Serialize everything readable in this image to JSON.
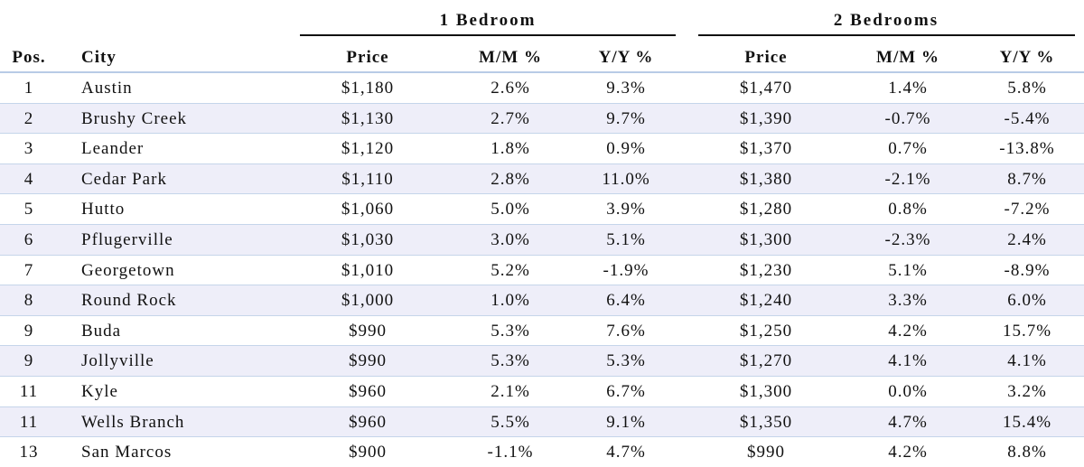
{
  "header": {
    "groups": [
      "1 Bedroom",
      "2 Bedrooms"
    ],
    "columns": [
      "Pos.",
      "City",
      "Price",
      "M/M %",
      "Y/Y %",
      "Price",
      "M/M %",
      "Y/Y %"
    ]
  },
  "table": {
    "rows": [
      [
        "1",
        "Austin",
        "$1,180",
        "2.6%",
        "9.3%",
        "$1,470",
        "1.4%",
        "5.8%"
      ],
      [
        "2",
        "Brushy Creek",
        "$1,130",
        "2.7%",
        "9.7%",
        "$1,390",
        "-0.7%",
        "-5.4%"
      ],
      [
        "3",
        "Leander",
        "$1,120",
        "1.8%",
        "0.9%",
        "$1,370",
        "0.7%",
        "-13.8%"
      ],
      [
        "4",
        "Cedar Park",
        "$1,110",
        "2.8%",
        "11.0%",
        "$1,380",
        "-2.1%",
        "8.7%"
      ],
      [
        "5",
        "Hutto",
        "$1,060",
        "5.0%",
        "3.9%",
        "$1,280",
        "0.8%",
        "-7.2%"
      ],
      [
        "6",
        "Pflugerville",
        "$1,030",
        "3.0%",
        "5.1%",
        "$1,300",
        "-2.3%",
        "2.4%"
      ],
      [
        "7",
        "Georgetown",
        "$1,010",
        "5.2%",
        "-1.9%",
        "$1,230",
        "5.1%",
        "-8.9%"
      ],
      [
        "8",
        "Round Rock",
        "$1,000",
        "1.0%",
        "6.4%",
        "$1,240",
        "3.3%",
        "6.0%"
      ],
      [
        "9",
        "Buda",
        "$990",
        "5.3%",
        "7.6%",
        "$1,250",
        "4.2%",
        "15.7%"
      ],
      [
        "9",
        "Jollyville",
        "$990",
        "5.3%",
        "5.3%",
        "$1,270",
        "4.1%",
        "4.1%"
      ],
      [
        "11",
        "Kyle",
        "$960",
        "2.1%",
        "6.7%",
        "$1,300",
        "0.0%",
        "3.2%"
      ],
      [
        "11",
        "Wells Branch",
        "$960",
        "5.5%",
        "9.1%",
        "$1,350",
        "4.7%",
        "15.4%"
      ],
      [
        "13",
        "San Marcos",
        "$900",
        "-1.1%",
        "4.7%",
        "$990",
        "4.2%",
        "8.8%"
      ]
    ]
  }
}
